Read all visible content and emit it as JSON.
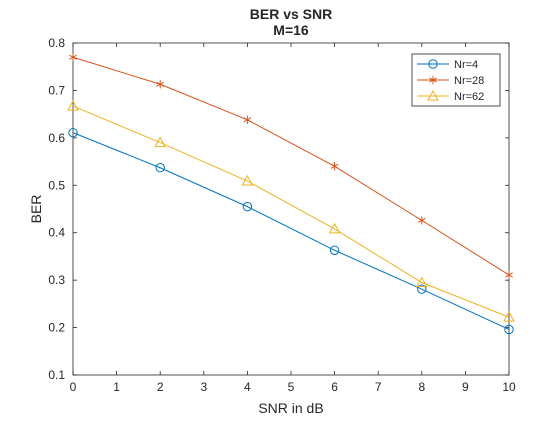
{
  "chart_data": {
    "type": "line",
    "title": "BER vs SNR",
    "subtitle": "M=16",
    "xlabel": "SNR in dB",
    "ylabel": "BER",
    "xlim": [
      0,
      10
    ],
    "ylim": [
      0.1,
      0.8
    ],
    "xticks": [
      0,
      1,
      2,
      3,
      4,
      5,
      6,
      7,
      8,
      9,
      10
    ],
    "yticks": [
      0.1,
      0.2,
      0.3,
      0.4,
      0.5,
      0.6,
      0.7,
      0.8
    ],
    "grid": false,
    "legend_location": "top-right",
    "x": [
      0,
      2,
      4,
      6,
      8,
      10
    ],
    "series": [
      {
        "name": "Nr=4",
        "marker": "circle",
        "color": "#0072BD",
        "values": [
          0.611,
          0.537,
          0.455,
          0.363,
          0.281,
          0.196
        ]
      },
      {
        "name": "Nr=28",
        "marker": "asterisk",
        "color": "#D95319",
        "values": [
          0.77,
          0.713,
          0.638,
          0.54,
          0.426,
          0.311
        ]
      },
      {
        "name": "Nr=62",
        "marker": "triangle",
        "color": "#EDB120",
        "values": [
          0.667,
          0.59,
          0.509,
          0.408,
          0.295,
          0.222
        ]
      }
    ]
  }
}
